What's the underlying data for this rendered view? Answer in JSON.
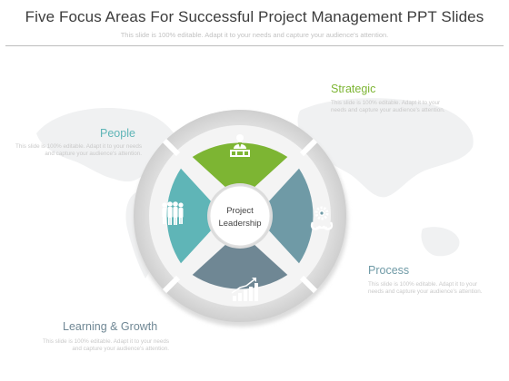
{
  "header": {
    "title": "Five Focus Areas For Successful Project Management PPT Slides",
    "subtitle": "This slide is 100% editable. Adapt it to your needs and capture your audience's attention."
  },
  "center": {
    "line1": "Project",
    "line2": "Leadership"
  },
  "areas": [
    {
      "label": "Strategic",
      "description": "This slide is 100% editable. Adapt it to your needs and capture your audience's attention.",
      "color": "#7db533",
      "icon": "businessman-desk-icon"
    },
    {
      "label": "People",
      "description": "This slide is 100% editable. Adapt it to your needs and capture your audience's attention.",
      "color": "#5fb5b7",
      "icon": "group-people-icon"
    },
    {
      "label": "Process",
      "description": "This slide is 100% editable. Adapt it to your needs and capture your audience's attention.",
      "color": "#6f9aa6",
      "icon": "gears-cycle-icon"
    },
    {
      "label": "Learning & Growth",
      "description": "This slide is 100% editable. Adapt it to your needs and capture your audience's attention.",
      "color": "#6f8794",
      "icon": "growth-chart-icon"
    }
  ]
}
